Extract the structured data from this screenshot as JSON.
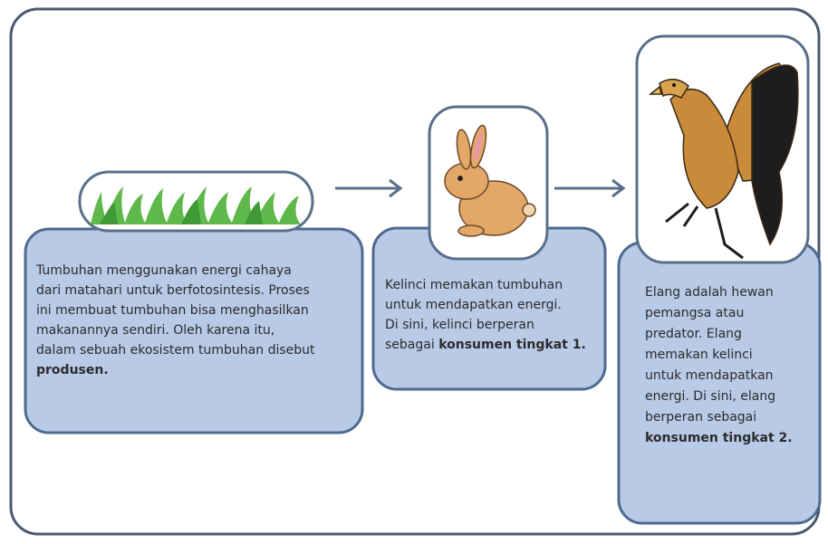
{
  "nodes": [
    {
      "lines": [
        [
          {
            "text": "Tumbuhan menggunakan energi cahaya"
          }
        ],
        [
          {
            "text": "dari matahari untuk berfotosintesis. Proses"
          }
        ],
        [
          {
            "text": "ini membuat tumbuhan bisa menghasilkan"
          }
        ],
        [
          {
            "text": "makanannya sendiri. Oleh karena itu,"
          }
        ],
        [
          {
            "text": "dalam sebuah ekosistem tumbuhan disebut"
          }
        ],
        [
          {
            "text": "produsen.",
            "bold": true
          }
        ]
      ]
    },
    {
      "lines": [
        [
          {
            "text": "Kelinci memakan tumbuhan"
          }
        ],
        [
          {
            "text": "untuk mendapatkan energi."
          }
        ],
        [
          {
            "text": "Di sini, kelinci berperan"
          }
        ],
        [
          {
            "text": "sebagai "
          },
          {
            "text": "konsumen tingkat 1.",
            "bold": true
          }
        ]
      ]
    },
    {
      "lines": [
        [
          {
            "text": "Elang adalah hewan"
          }
        ],
        [
          {
            "text": "pemangsa atau"
          }
        ],
        [
          {
            "text": "predator. Elang"
          }
        ],
        [
          {
            "text": "memakan kelinci"
          }
        ],
        [
          {
            "text": "untuk mendapatkan"
          }
        ],
        [
          {
            "text": "energi. Di sini, elang"
          }
        ],
        [
          {
            "text": "berperan sebagai"
          }
        ],
        [
          {
            "text": "konsumen tingkat 2.",
            "bold": true
          }
        ]
      ]
    }
  ]
}
